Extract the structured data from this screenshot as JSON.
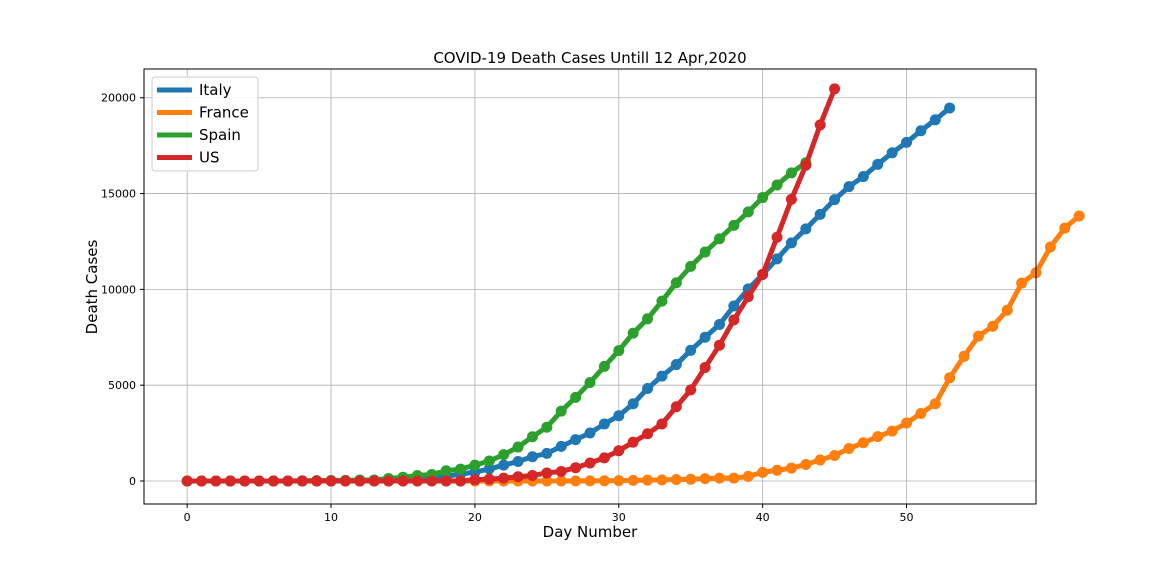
{
  "chart_data": {
    "type": "line",
    "title": "COVID-19 Death Cases Untill 12 Apr,2020",
    "xlabel": "Day Number",
    "ylabel": "Death Cases",
    "xlim": [
      -3,
      59
    ],
    "ylim": [
      -1200,
      21500
    ],
    "xticks": [
      0,
      10,
      20,
      30,
      40,
      50
    ],
    "yticks": [
      0,
      5000,
      10000,
      15000,
      20000
    ],
    "grid": true,
    "legend_position": "top-left",
    "series": [
      {
        "name": "Italy",
        "color": "#1f77b4",
        "values": [
          0,
          0,
          0,
          0,
          0,
          0,
          0,
          0,
          0,
          0,
          0,
          0,
          0,
          0,
          79,
          107,
          148,
          197,
          233,
          366,
          463,
          631,
          827,
          1016,
          1266,
          1441,
          1809,
          2158,
          2503,
          2978,
          3405,
          4032,
          4825,
          5476,
          6077,
          6820,
          7503,
          8165,
          9134,
          10023,
          10779,
          11591,
          12428,
          13155,
          13915,
          14681,
          15362,
          15887,
          16523,
          17127,
          17669,
          18279,
          18849,
          19468
        ]
      },
      {
        "name": "France",
        "color": "#ff7f0e",
        "values": [
          0,
          0,
          0,
          0,
          0,
          0,
          0,
          0,
          0,
          0,
          0,
          0,
          0,
          0,
          0,
          0,
          0,
          0,
          0,
          0,
          0,
          0,
          0,
          0,
          0,
          0,
          0,
          7,
          9,
          11,
          19,
          33,
          48,
          61,
          79,
          91,
          127,
          148,
          148,
          243,
          450,
          562,
          674,
          860,
          1100,
          1331,
          1696,
          1995,
          2314,
          2606,
          3024,
          3523,
          4032,
          5387,
          6507,
          7560,
          8078,
          8911,
          10328,
          10869,
          12210,
          13197,
          13832
        ]
      },
      {
        "name": "Spain",
        "color": "#2ca02c",
        "values": [
          0,
          0,
          0,
          0,
          0,
          0,
          0,
          0,
          10,
          17,
          28,
          35,
          54,
          55,
          133,
          195,
          289,
          342,
          533,
          623,
          830,
          1043,
          1375,
          1772,
          2311,
          2808,
          3647,
          4365,
          5138,
          5982,
          6803,
          7716,
          8464,
          9387,
          10348,
          11198,
          11947,
          12641,
          13341,
          14045,
          14792,
          15447,
          16081,
          16606
        ]
      },
      {
        "name": "US",
        "color": "#d62728",
        "values": [
          0,
          0,
          0,
          0,
          0,
          0,
          0,
          0,
          0,
          0,
          0,
          0,
          0,
          0,
          0,
          0,
          0,
          0,
          0,
          0,
          69,
          100,
          150,
          220,
          290,
          421,
          499,
          695,
          941,
          1209,
          1581,
          2026,
          2467,
          2978,
          3873,
          4757,
          5926,
          7087,
          8407,
          9619,
          10783,
          12722,
          14695,
          16478,
          18586,
          20463
        ]
      }
    ]
  }
}
